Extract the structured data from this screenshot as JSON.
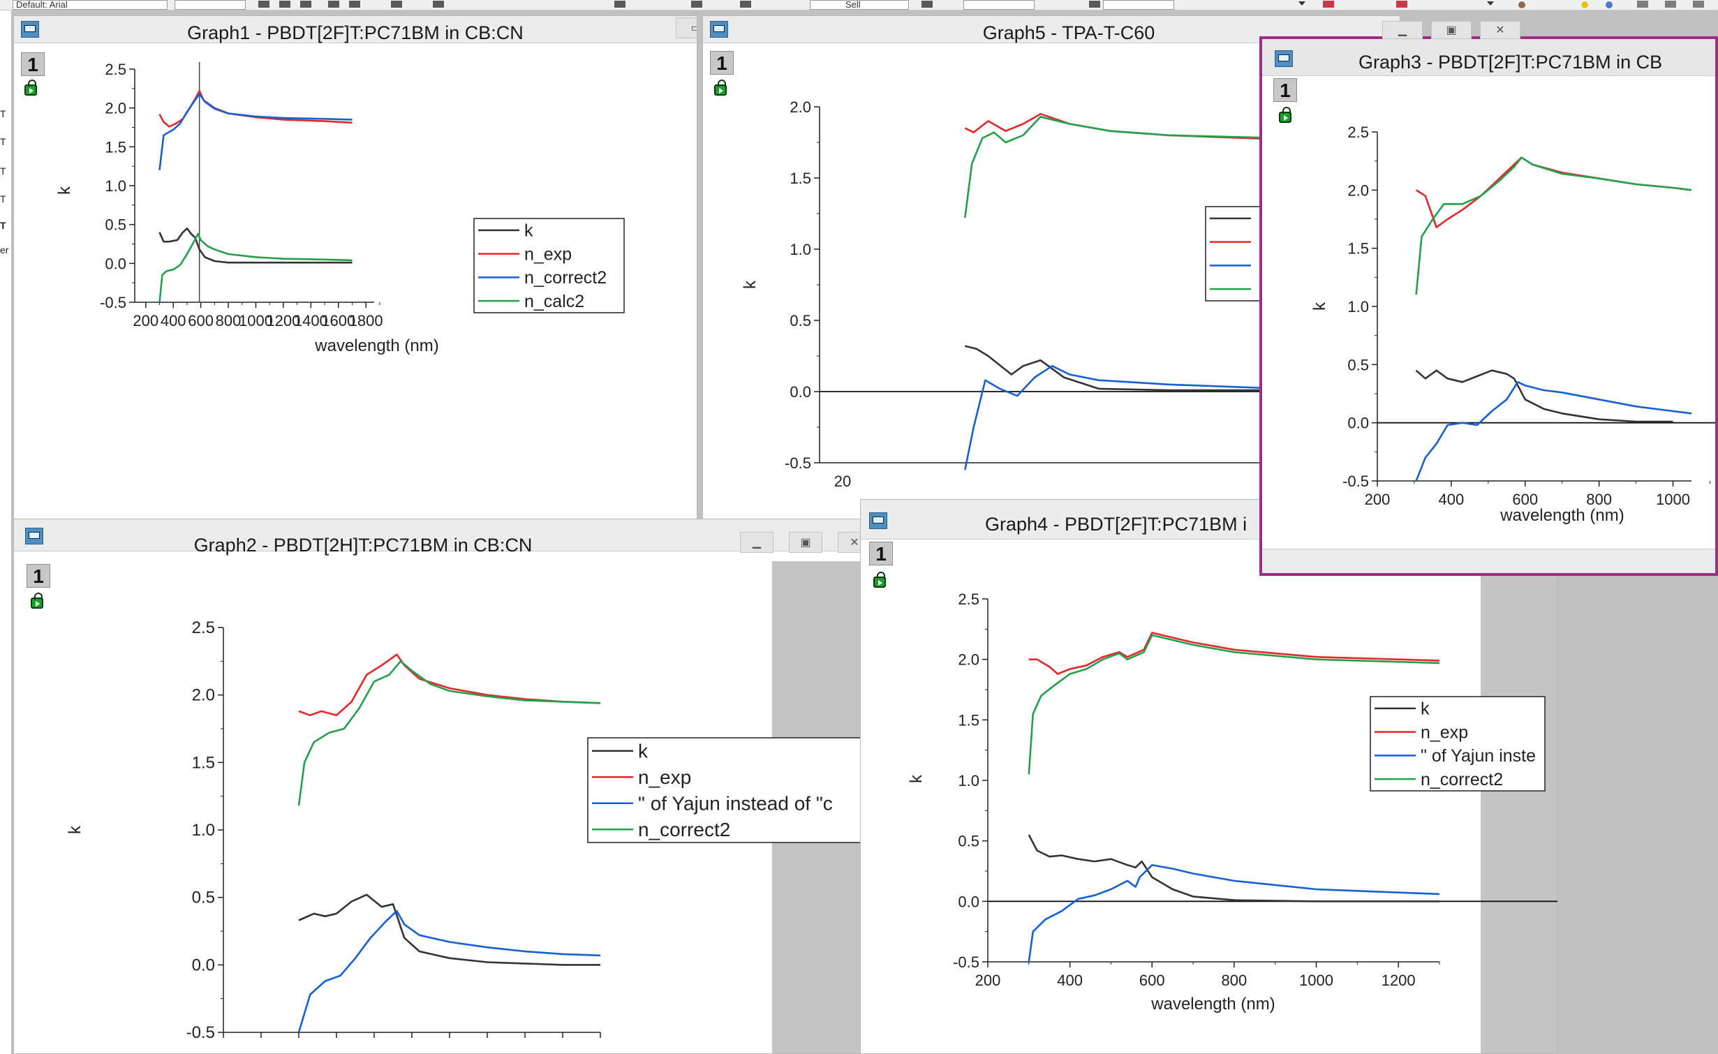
{
  "colors": {
    "k": "#333333",
    "n_exp": "#e8262a",
    "n_blue": "#1560d4",
    "n_green": "#22a04a",
    "active_border": "#9b2d8c"
  },
  "toolbar": {
    "font_box_text": "Default: Arial",
    "zoom_box_text": "Sell"
  },
  "left_strip": {
    "fragments": [
      "T",
      "T",
      "T",
      "T",
      "T",
      "er"
    ]
  },
  "page_number": "1",
  "windows": {
    "graph1": {
      "title": "Graph1 - PBDT[2F]T:PC71BM in CB:CN",
      "chart": {
        "type": "line",
        "ylabel": "k",
        "xlabel": "wavelength (nm)",
        "xlim": [
          120,
          1860
        ],
        "ylim": [
          -0.5,
          2.5
        ],
        "xticks": [
          "200",
          "400",
          "600",
          "800",
          "1000",
          "1200",
          "1400",
          "1600",
          "1800"
        ],
        "yticks": [
          "2.5",
          "2.0",
          "1.5",
          "1.0",
          "0.5",
          "0.0",
          "-0.5"
        ],
        "vline": 590,
        "legend": [
          "k",
          "n_exp",
          "n_correct2",
          "n_calc2"
        ]
      }
    },
    "graph5": {
      "title": "Graph5 - TPA-T-C60",
      "chart": {
        "type": "line",
        "ylabel": "k",
        "xlim": [
          0,
          1000
        ],
        "ylim": [
          -0.5,
          2.0
        ],
        "xticks": [
          "20"
        ],
        "yticks": [
          "2.0",
          "1.5",
          "1.0",
          "0.5",
          "0.0",
          "-0.5"
        ],
        "zero_line": true,
        "legend": [
          "",
          "",
          "",
          ""
        ]
      }
    },
    "graph3": {
      "title": "Graph3 - PBDT[2F]T:PC71BM in CB",
      "chart": {
        "type": "line",
        "ylabel": "k",
        "xlabel": "wavelength (nm)",
        "xlim": [
          200,
          1050
        ],
        "ylim": [
          -0.5,
          2.5
        ],
        "xticks": [
          "200",
          "400",
          "600",
          "800",
          "1000"
        ],
        "yticks": [
          "2.5",
          "2.0",
          "1.5",
          "1.0",
          "0.5",
          "0.0",
          "-0.5"
        ],
        "zero_line": true
      }
    },
    "graph2": {
      "title": "Graph2 - PBDT[2H]T:PC71BM in CB:CN",
      "chart": {
        "type": "line",
        "ylabel": "k",
        "ylim": [
          -0.5,
          2.5
        ],
        "yticks": [
          "2.5",
          "2.0",
          "1.5",
          "1.0",
          "0.5",
          "0.0",
          "-0.5"
        ],
        "legend": [
          "k",
          "n_exp",
          "\" of Yajun instead of \"c",
          "n_correct2"
        ]
      }
    },
    "graph4": {
      "title": "Graph4 - PBDT[2F]T:PC71BM i",
      "chart": {
        "type": "line",
        "ylabel": "k",
        "xlabel": "wavelength (nm)",
        "xlim": [
          200,
          1300
        ],
        "ylim": [
          -0.5,
          2.5
        ],
        "xticks": [
          "200",
          "400",
          "600",
          "800",
          "1000",
          "1200"
        ],
        "yticks": [
          "2.5",
          "2.0",
          "1.5",
          "1.0",
          "0.5",
          "0.0",
          "-0.5"
        ],
        "zero_line": true,
        "legend": [
          "k",
          "n_exp",
          "\" of Yajun inste",
          "n_correct2"
        ]
      }
    }
  },
  "chart_data": [
    {
      "type": "line",
      "title": "Graph1 - PBDT[2F]T:PC71BM in CB:CN",
      "xlabel": "wavelength (nm)",
      "ylabel": "k",
      "xlim": [
        120,
        1860
      ],
      "ylim": [
        -0.5,
        2.5
      ],
      "series": [
        {
          "name": "k",
          "color": "#333333",
          "x": [
            300,
            330,
            370,
            430,
            470,
            500,
            530,
            560,
            590,
            630,
            700,
            800,
            1000,
            1300,
            1700
          ],
          "y": [
            0.4,
            0.28,
            0.28,
            0.3,
            0.4,
            0.45,
            0.38,
            0.33,
            0.18,
            0.08,
            0.03,
            0.01,
            0.01,
            0.01,
            0.01
          ]
        },
        {
          "name": "n_exp",
          "color": "#e8262a",
          "x": [
            300,
            330,
            370,
            420,
            470,
            520,
            560,
            590,
            620,
            700,
            800,
            1000,
            1200,
            1500,
            1700
          ],
          "y": [
            1.92,
            1.82,
            1.76,
            1.8,
            1.86,
            2.0,
            2.12,
            2.22,
            2.1,
            2.0,
            1.93,
            1.88,
            1.85,
            1.83,
            1.81
          ]
        },
        {
          "name": "n_correct2",
          "color": "#1560d4",
          "x": [
            300,
            330,
            360,
            400,
            450,
            500,
            550,
            590,
            630,
            700,
            800,
            1000,
            1200,
            1500,
            1700
          ],
          "y": [
            1.2,
            1.65,
            1.68,
            1.72,
            1.8,
            1.95,
            2.08,
            2.18,
            2.08,
            1.99,
            1.93,
            1.89,
            1.87,
            1.86,
            1.85
          ]
        },
        {
          "name": "n_calc2",
          "color": "#22a04a",
          "x": [
            300,
            320,
            350,
            400,
            450,
            500,
            550,
            580,
            600,
            650,
            700,
            800,
            1000,
            1200,
            1500,
            1700
          ],
          "y": [
            -0.5,
            -0.15,
            -0.1,
            -0.08,
            -0.02,
            0.12,
            0.28,
            0.38,
            0.3,
            0.22,
            0.18,
            0.12,
            0.08,
            0.06,
            0.05,
            0.04
          ]
        }
      ]
    },
    {
      "type": "line",
      "title": "Graph5 - TPA-T-C60",
      "ylabel": "k",
      "xlim": [
        0,
        1000
      ],
      "ylim": [
        -0.5,
        2.0
      ],
      "series": [
        {
          "name": "",
          "color": "#333333",
          "x": [
            250,
            270,
            290,
            330,
            350,
            380,
            420,
            480,
            600,
            800,
            1000
          ],
          "y": [
            0.32,
            0.3,
            0.25,
            0.12,
            0.18,
            0.22,
            0.1,
            0.02,
            0.01,
            0.01,
            0.01
          ]
        },
        {
          "name": "",
          "color": "#e8262a",
          "x": [
            250,
            265,
            290,
            320,
            350,
            380,
            430,
            500,
            600,
            800,
            1000
          ],
          "y": [
            1.85,
            1.82,
            1.9,
            1.83,
            1.88,
            1.95,
            1.88,
            1.83,
            1.8,
            1.77,
            1.76
          ]
        },
        {
          "name": "",
          "color": "#1560d4",
          "x": [
            250,
            265,
            285,
            310,
            340,
            370,
            400,
            430,
            480,
            600,
            800,
            950,
            1000
          ],
          "y": [
            -0.55,
            -0.25,
            0.08,
            0.02,
            -0.03,
            0.1,
            0.18,
            0.12,
            0.08,
            0.05,
            0.02,
            0.02,
            0.04
          ]
        },
        {
          "name": "",
          "color": "#22a04a",
          "x": [
            250,
            262,
            280,
            300,
            320,
            350,
            380,
            430,
            500,
            600,
            800,
            950,
            1000
          ],
          "y": [
            1.22,
            1.6,
            1.78,
            1.82,
            1.75,
            1.8,
            1.93,
            1.88,
            1.83,
            1.8,
            1.78,
            1.78,
            1.8
          ]
        }
      ]
    },
    {
      "type": "line",
      "title": "Graph3 - PBDT[2F]T:PC71BM in CB",
      "xlabel": "wavelength (nm)",
      "ylabel": "k",
      "xlim": [
        200,
        1050
      ],
      "ylim": [
        -0.5,
        2.5
      ],
      "series": [
        {
          "name": "",
          "color": "#333333",
          "x": [
            305,
            330,
            360,
            390,
            430,
            470,
            510,
            550,
            570,
            600,
            650,
            700,
            800,
            900,
            1000
          ],
          "y": [
            0.45,
            0.38,
            0.45,
            0.38,
            0.35,
            0.4,
            0.45,
            0.42,
            0.38,
            0.2,
            0.12,
            0.08,
            0.03,
            0.01,
            0.01
          ]
        },
        {
          "name": "",
          "color": "#e8262a",
          "x": [
            305,
            330,
            360,
            390,
            430,
            480,
            530,
            570,
            590,
            620,
            700,
            800,
            900,
            1000,
            1050
          ],
          "y": [
            2.0,
            1.95,
            1.68,
            1.75,
            1.83,
            1.95,
            2.1,
            2.22,
            2.28,
            2.22,
            2.15,
            2.1,
            2.05,
            2.02,
            2.0
          ]
        },
        {
          "name": "",
          "color": "#1560d4",
          "x": [
            305,
            330,
            360,
            390,
            430,
            470,
            510,
            550,
            580,
            600,
            650,
            700,
            800,
            900,
            1000,
            1050
          ],
          "y": [
            -0.5,
            -0.3,
            -0.18,
            -0.02,
            0.0,
            -0.02,
            0.1,
            0.2,
            0.35,
            0.32,
            0.28,
            0.26,
            0.2,
            0.14,
            0.1,
            0.08
          ]
        },
        {
          "name": "",
          "color": "#22a04a",
          "x": [
            305,
            320,
            350,
            380,
            430,
            480,
            530,
            570,
            590,
            620,
            700,
            800,
            900,
            1000,
            1050
          ],
          "y": [
            1.1,
            1.6,
            1.75,
            1.88,
            1.88,
            1.95,
            2.08,
            2.2,
            2.28,
            2.22,
            2.14,
            2.1,
            2.05,
            2.02,
            2.0
          ]
        }
      ]
    },
    {
      "type": "line",
      "title": "Graph2 - PBDT[2H]T:PC71BM in CB:CN",
      "ylabel": "k",
      "xlim": [
        0,
        1000
      ],
      "ylim": [
        -0.5,
        2.5
      ],
      "series": [
        {
          "name": "k",
          "color": "#333333",
          "x": [
            200,
            240,
            270,
            300,
            340,
            380,
            420,
            450,
            480,
            520,
            600,
            700,
            800,
            900,
            1000
          ],
          "y": [
            0.33,
            0.38,
            0.36,
            0.38,
            0.47,
            0.52,
            0.43,
            0.45,
            0.2,
            0.1,
            0.05,
            0.02,
            0.01,
            0.0,
            0.0
          ]
        },
        {
          "name": "n_exp",
          "color": "#e8262a",
          "x": [
            200,
            230,
            260,
            300,
            340,
            380,
            420,
            460,
            480,
            520,
            600,
            700,
            800,
            900,
            1000
          ],
          "y": [
            1.88,
            1.85,
            1.88,
            1.85,
            1.95,
            2.15,
            2.22,
            2.3,
            2.22,
            2.12,
            2.05,
            2.0,
            1.97,
            1.95,
            1.94
          ]
        },
        {
          "name": "\" of Yajun instead of \"c",
          "color": "#1560d4",
          "x": [
            200,
            230,
            270,
            310,
            350,
            390,
            430,
            460,
            480,
            520,
            600,
            700,
            800,
            900,
            1000
          ],
          "y": [
            -0.5,
            -0.22,
            -0.12,
            -0.08,
            0.05,
            0.2,
            0.32,
            0.4,
            0.3,
            0.22,
            0.17,
            0.13,
            0.1,
            0.08,
            0.07
          ]
        },
        {
          "name": "n_correct2",
          "color": "#22a04a",
          "x": [
            200,
            215,
            240,
            280,
            320,
            360,
            400,
            440,
            470,
            500,
            550,
            600,
            700,
            800,
            900,
            1000
          ],
          "y": [
            1.18,
            1.5,
            1.65,
            1.72,
            1.75,
            1.9,
            2.1,
            2.15,
            2.25,
            2.18,
            2.08,
            2.03,
            1.99,
            1.96,
            1.95,
            1.94
          ]
        }
      ]
    },
    {
      "type": "line",
      "title": "Graph4 - PBDT[2F]T:PC71BM i",
      "xlabel": "wavelength (nm)",
      "ylabel": "k",
      "xlim": [
        200,
        1300
      ],
      "ylim": [
        -0.5,
        2.5
      ],
      "series": [
        {
          "name": "k",
          "color": "#333333",
          "x": [
            300,
            320,
            350,
            380,
            420,
            460,
            500,
            540,
            560,
            575,
            600,
            650,
            700,
            800,
            1000,
            1300
          ],
          "y": [
            0.55,
            0.42,
            0.37,
            0.38,
            0.35,
            0.33,
            0.35,
            0.3,
            0.28,
            0.33,
            0.2,
            0.1,
            0.04,
            0.01,
            0.0,
            0.0
          ]
        },
        {
          "name": "n_exp",
          "color": "#e8262a",
          "x": [
            300,
            320,
            350,
            370,
            400,
            440,
            480,
            520,
            540,
            560,
            580,
            600,
            650,
            700,
            800,
            1000,
            1300
          ],
          "y": [
            2.0,
            2.0,
            1.94,
            1.88,
            1.92,
            1.95,
            2.02,
            2.06,
            2.02,
            2.05,
            2.08,
            2.22,
            2.18,
            2.14,
            2.08,
            2.02,
            1.99
          ]
        },
        {
          "name": "\" of Yajun inste",
          "color": "#1560d4",
          "x": [
            300,
            310,
            340,
            380,
            420,
            460,
            500,
            540,
            560,
            570,
            600,
            650,
            700,
            800,
            1000,
            1300
          ],
          "y": [
            -0.5,
            -0.25,
            -0.15,
            -0.08,
            0.02,
            0.05,
            0.1,
            0.17,
            0.12,
            0.2,
            0.3,
            0.27,
            0.23,
            0.17,
            0.1,
            0.06
          ]
        },
        {
          "name": "n_correct2",
          "color": "#22a04a",
          "x": [
            300,
            310,
            330,
            360,
            400,
            440,
            480,
            520,
            540,
            560,
            580,
            600,
            650,
            700,
            800,
            1000,
            1300
          ],
          "y": [
            1.05,
            1.55,
            1.7,
            1.78,
            1.88,
            1.92,
            2.0,
            2.05,
            2.0,
            2.03,
            2.06,
            2.2,
            2.16,
            2.12,
            2.06,
            2.0,
            1.97
          ]
        }
      ]
    }
  ]
}
